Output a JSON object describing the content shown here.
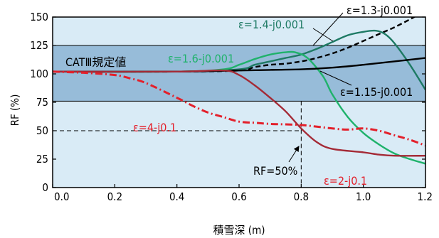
{
  "chart_data": {
    "type": "line",
    "xlabel": "積雪深 (m)",
    "ylabel": "RF (%)",
    "xlim": [
      0.0,
      1.2
    ],
    "ylim": [
      0,
      150
    ],
    "x_ticks": [
      "0.0",
      "0.2",
      "0.4",
      "0.6",
      "0.8",
      "1.0",
      "1.2"
    ],
    "y_ticks": [
      "0",
      "25",
      "50",
      "75",
      "100",
      "125",
      "150"
    ],
    "grid": false,
    "plot_background": "#d9ebf6",
    "band": {
      "label": "CATⅢ規定値",
      "y_range": [
        76,
        125
      ],
      "color": "#97bcd9"
    },
    "series": [
      {
        "name": "ε=1.3-j0.001",
        "color": "#000000",
        "dash": true,
        "points": [
          [
            0.0,
            102
          ],
          [
            0.4,
            102
          ],
          [
            0.6,
            103
          ],
          [
            0.65,
            106
          ],
          [
            0.7,
            108
          ],
          [
            0.75,
            109
          ],
          [
            0.8,
            111
          ],
          [
            0.85,
            114
          ],
          [
            0.9,
            118
          ],
          [
            0.95,
            123
          ],
          [
            1.0,
            129
          ],
          [
            1.05,
            135
          ],
          [
            1.1,
            141
          ],
          [
            1.15,
            148
          ],
          [
            1.17,
            151
          ]
        ]
      },
      {
        "name": "ε=1.4-j0.001",
        "color": "#1e7a64",
        "dash": false,
        "points": [
          [
            0.0,
            102
          ],
          [
            0.4,
            102
          ],
          [
            0.6,
            104
          ],
          [
            0.65,
            108
          ],
          [
            0.7,
            111
          ],
          [
            0.75,
            114
          ],
          [
            0.8,
            117
          ],
          [
            0.85,
            122
          ],
          [
            0.9,
            128
          ],
          [
            0.95,
            134
          ],
          [
            1.0,
            137
          ],
          [
            1.04,
            138
          ],
          [
            1.07,
            135
          ],
          [
            1.1,
            127
          ],
          [
            1.15,
            108
          ],
          [
            1.2,
            86
          ]
        ]
      },
      {
        "name": "ε=1.6-j0.001",
        "color": "#1fb26b",
        "dash": false,
        "points": [
          [
            0.0,
            102
          ],
          [
            0.4,
            102
          ],
          [
            0.55,
            104
          ],
          [
            0.6,
            108
          ],
          [
            0.65,
            113
          ],
          [
            0.7,
            117
          ],
          [
            0.75,
            119
          ],
          [
            0.78,
            119
          ],
          [
            0.82,
            114
          ],
          [
            0.87,
            98
          ],
          [
            0.9,
            82
          ],
          [
            0.95,
            62
          ],
          [
            1.0,
            48
          ],
          [
            1.05,
            38
          ],
          [
            1.1,
            30
          ],
          [
            1.15,
            25
          ],
          [
            1.2,
            21
          ]
        ]
      },
      {
        "name": "ε=1.15-j0.001",
        "color": "#000000",
        "dash": false,
        "points": [
          [
            0.0,
            102
          ],
          [
            0.4,
            102
          ],
          [
            0.6,
            103
          ],
          [
            0.7,
            103.5
          ],
          [
            0.8,
            104
          ],
          [
            0.9,
            105.5
          ],
          [
            1.0,
            108
          ],
          [
            1.1,
            111
          ],
          [
            1.2,
            114
          ]
        ]
      },
      {
        "name": "ε=2-j0.1",
        "color": "#a42a36",
        "dash": false,
        "points": [
          [
            0.0,
            102
          ],
          [
            0.4,
            102
          ],
          [
            0.55,
            103
          ],
          [
            0.6,
            99
          ],
          [
            0.65,
            90
          ],
          [
            0.7,
            79
          ],
          [
            0.75,
            67
          ],
          [
            0.8,
            52
          ],
          [
            0.85,
            40
          ],
          [
            0.9,
            34
          ],
          [
            1.0,
            31
          ],
          [
            1.05,
            29
          ],
          [
            1.1,
            28
          ],
          [
            1.2,
            28
          ]
        ]
      },
      {
        "name": "ε=4-j0.1",
        "color": "#e3202b",
        "dash": "dashdot",
        "points": [
          [
            0.0,
            102
          ],
          [
            0.1,
            101
          ],
          [
            0.2,
            99
          ],
          [
            0.25,
            96
          ],
          [
            0.3,
            92
          ],
          [
            0.4,
            79
          ],
          [
            0.45,
            72
          ],
          [
            0.5,
            66
          ],
          [
            0.55,
            62
          ],
          [
            0.6,
            58
          ],
          [
            0.65,
            57
          ],
          [
            0.7,
            56
          ],
          [
            0.8,
            55
          ],
          [
            0.9,
            52
          ],
          [
            0.95,
            51
          ],
          [
            1.0,
            52
          ],
          [
            1.05,
            50
          ],
          [
            1.1,
            46
          ],
          [
            1.15,
            42
          ],
          [
            1.2,
            37
          ]
        ]
      }
    ],
    "annotations": [
      {
        "text": "ε=1.3-j0.001",
        "color": "#000000"
      },
      {
        "text": "ε=1.4-j0.001",
        "color": "#1e7a64"
      },
      {
        "text": "ε=1.6-j0.001",
        "color": "#1fb26b"
      },
      {
        "text": "ε=1.15-j0.001",
        "color": "#000000"
      },
      {
        "text": "ε=4-j0.1",
        "color": "#e3202b"
      },
      {
        "text": "ε=2-j0.1",
        "color": "#e3202b"
      },
      {
        "text": "RF=50%",
        "color": "#000000"
      }
    ],
    "marker": {
      "x": 0.8,
      "y": 50
    }
  }
}
